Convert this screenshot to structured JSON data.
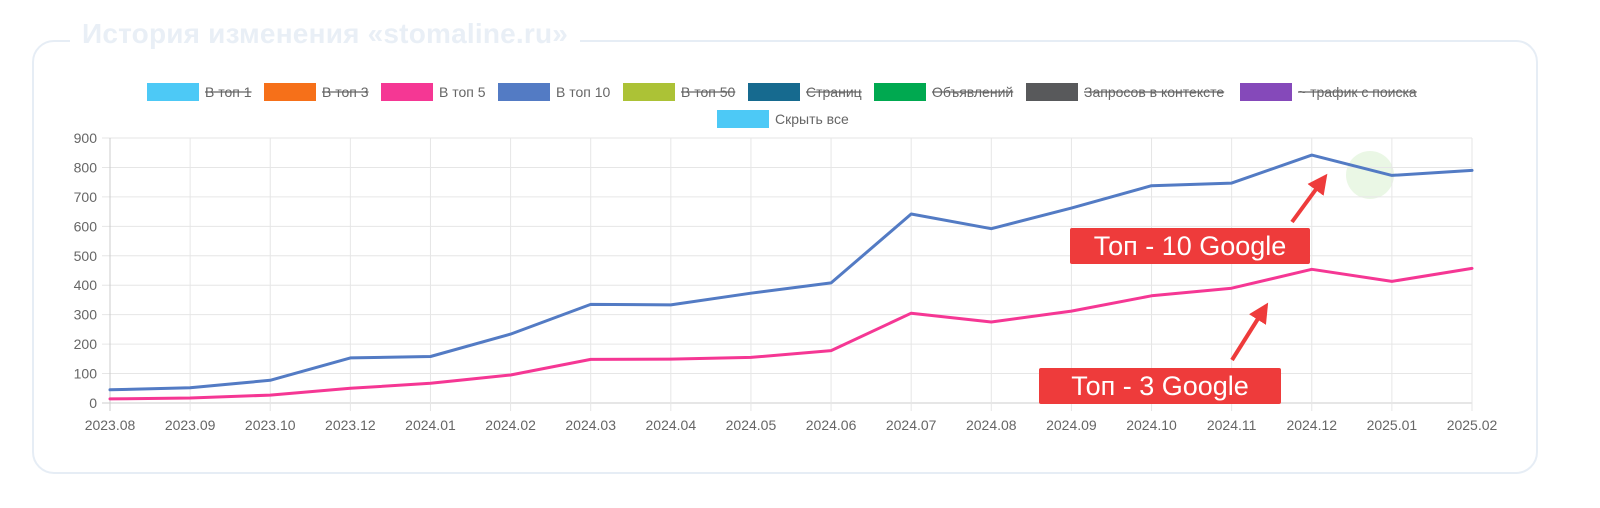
{
  "panel": {
    "title": "История изменения «stomaline.ru»"
  },
  "legend": [
    {
      "label": "В топ 1",
      "color": "#4dc9f6",
      "hidden": true
    },
    {
      "label": "В топ 3",
      "color": "#f67019",
      "hidden": true
    },
    {
      "label": "В топ 5",
      "color": "#f53794",
      "hidden": false
    },
    {
      "label": "В топ 10",
      "color": "#537bc4",
      "hidden": false
    },
    {
      "label": "В топ 50",
      "color": "#acc236",
      "hidden": true
    },
    {
      "label": "Страниц",
      "color": "#166a8f",
      "hidden": true
    },
    {
      "label": "Объявлений",
      "color": "#00a950",
      "hidden": true
    },
    {
      "label": "Запросов в контексте",
      "color": "#58595b",
      "hidden": true
    },
    {
      "label": "~ трафик с поиска",
      "color": "#8549ba",
      "hidden": true
    },
    {
      "label": "Скрыть все",
      "color": "#4dc9f6",
      "hidden": false
    }
  ],
  "chart_data": {
    "type": "line",
    "categories": [
      "2023.08",
      "2023.09",
      "2023.10",
      "2023.12",
      "2024.01",
      "2024.02",
      "2024.03",
      "2024.04",
      "2024.05",
      "2024.06",
      "2024.07",
      "2024.08",
      "2024.09",
      "2024.10",
      "2024.11",
      "2024.12",
      "2025.01",
      "2025.02"
    ],
    "yticks": [
      "0",
      "100",
      "200",
      "300",
      "400",
      "500",
      "600",
      "700",
      "800",
      "900"
    ],
    "ylim": [
      0,
      900
    ],
    "grid": true,
    "legend_position": "top",
    "series": [
      {
        "name": "В топ 10",
        "color": "#537bc4",
        "values": [
          45,
          52,
          77,
          153,
          158,
          234,
          335,
          333,
          373,
          408,
          642,
          592,
          662,
          738,
          747,
          842,
          773,
          790
        ]
      },
      {
        "name": "В топ 5",
        "color": "#f53794",
        "values": [
          14,
          17,
          27,
          50,
          67,
          95,
          148,
          149,
          155,
          178,
          305,
          275,
          312,
          364,
          390,
          454,
          413,
          457
        ]
      }
    ],
    "annotations": [
      {
        "text": "Топ - 10 Google",
        "color": "#ee3b3b"
      },
      {
        "text": "Топ - 3 Google",
        "color": "#ee3b3b"
      }
    ]
  }
}
